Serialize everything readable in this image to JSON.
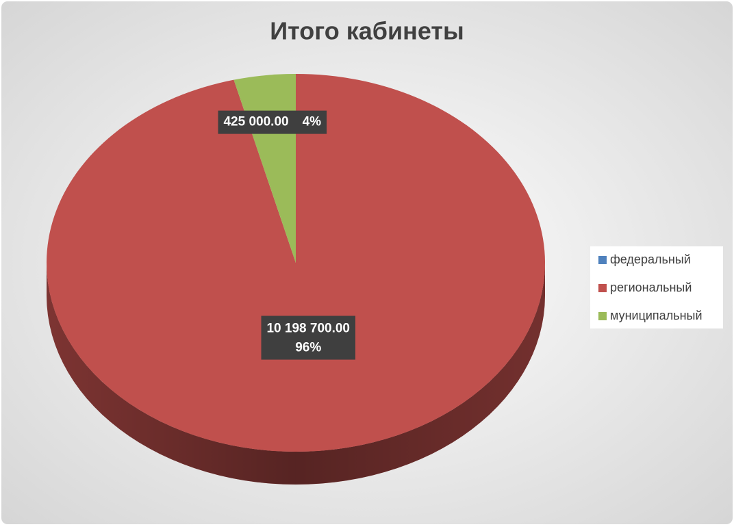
{
  "chart_data": {
    "type": "pie",
    "title": "Итого кабинеты",
    "categories": [
      "федеральный",
      "региональный",
      "муниципальный"
    ],
    "values": [
      0,
      10198700,
      425000
    ],
    "value_labels": [
      null,
      "10 198 700.00",
      "425 000.00"
    ],
    "percents": [
      0,
      96,
      4
    ],
    "percent_labels": [
      null,
      "96%",
      "4%"
    ],
    "colors": [
      "#4f81bd",
      "#c0504d",
      "#9bbb59"
    ],
    "legend": "right"
  }
}
